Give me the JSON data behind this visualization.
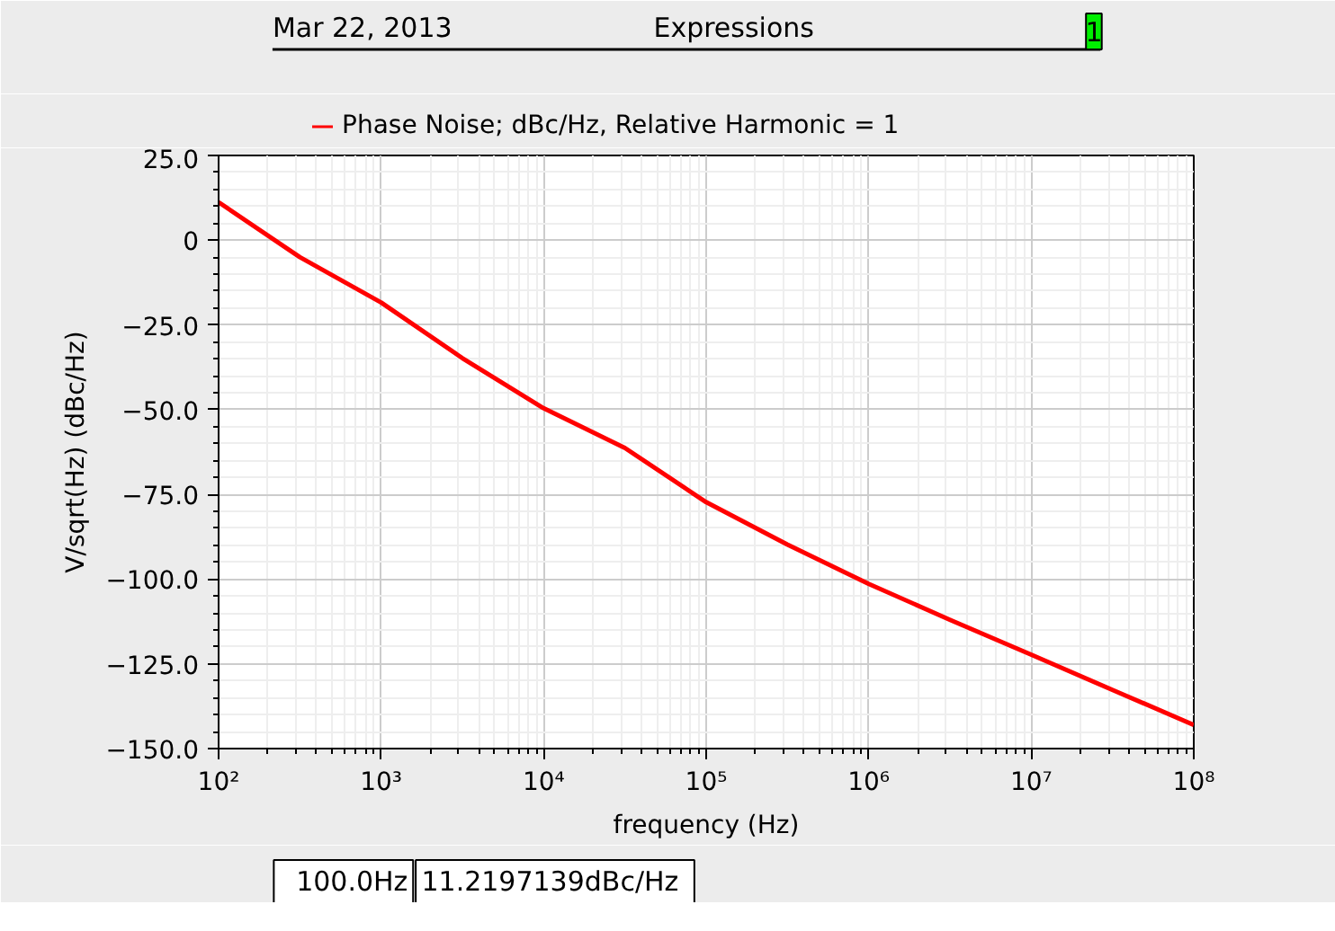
{
  "chart_data": {
    "type": "line",
    "title": "Expressions",
    "annotations": [
      "Mar 22, 2013",
      "1",
      "100.0Hz",
      "11.2197139dBc/Hz"
    ],
    "xlabel": "frequency (Hz)",
    "ylabel": "V/sqrt(Hz) (dBc/Hz)",
    "log": "x",
    "grid": true,
    "legend": "top left",
    "marker": "none",
    "line_style": "solid",
    "x": [
      100,
      316,
      1000,
      3162,
      10000,
      31623,
      100000,
      316228,
      1000000,
      3162278,
      10000000,
      31622777,
      100000000
    ],
    "series": [
      {
        "name": "Phase Noise; dBc/Hz, Relative Harmonic = 1",
        "color": "#ff0000",
        "values": [
          11.2,
          -5,
          -18.4,
          -34.8,
          -49.6,
          -61.3,
          -77.3,
          -89.8,
          -101.4,
          -112,
          -122.3,
          -132.7,
          -143
        ]
      }
    ],
    "xlim": [
      100,
      100000000
    ],
    "ylim": [
      -150,
      25
    ],
    "xticks": [
      {
        "value": 100,
        "label": "10²"
      },
      {
        "value": 1000,
        "label": "10³"
      },
      {
        "value": 10000,
        "label": "10⁴"
      },
      {
        "value": 100000,
        "label": "10⁵"
      },
      {
        "value": 1000000,
        "label": "10⁶"
      },
      {
        "value": 10000000,
        "label": "10⁷"
      },
      {
        "value": 100000000,
        "label": "10⁸"
      }
    ],
    "yticks": [
      {
        "value": 25,
        "label": "25.0"
      },
      0,
      {
        "value": -25,
        "label": "−25.0"
      },
      {
        "value": -50,
        "label": "−50.0"
      },
      {
        "value": -75,
        "label": "−75.0"
      },
      {
        "value": -100,
        "label": "−100.0"
      },
      {
        "value": -125,
        "label": "−125.0"
      },
      {
        "value": -150,
        "label": "−150.0"
      }
    ]
  }
}
